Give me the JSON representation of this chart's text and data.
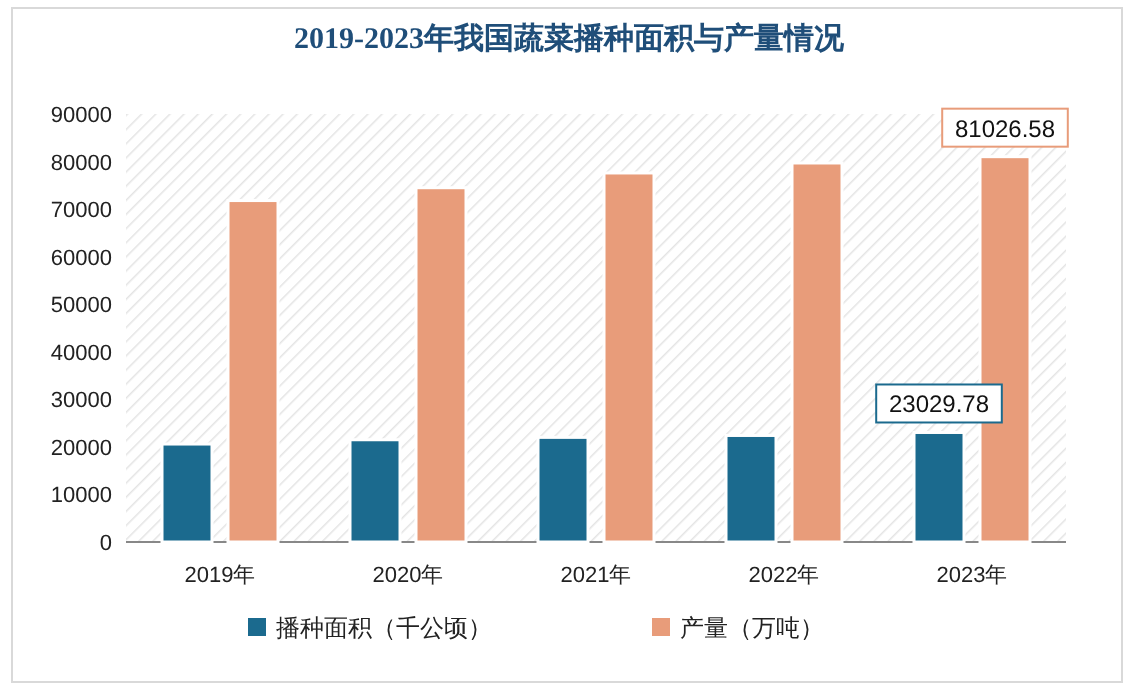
{
  "chart_data": {
    "type": "bar",
    "title": "2019-2023年我国蔬菜播种面积与产量情况",
    "categories": [
      "2019年",
      "2020年",
      "2021年",
      "2022年",
      "2023年"
    ],
    "series": [
      {
        "name": "播种面积（千公顷）",
        "color": "#1b6a8e",
        "values": [
          20600,
          21500,
          22000,
          22400,
          23029.78
        ],
        "value_labels": [
          null,
          null,
          null,
          null,
          "23029.78"
        ]
      },
      {
        "name": "产量（万吨）",
        "color": "#e89c7a",
        "values": [
          71800,
          74500,
          77600,
          79700,
          81026.58
        ],
        "value_labels": [
          null,
          null,
          null,
          null,
          "81026.58"
        ]
      }
    ],
    "ylim": [
      0,
      90000
    ],
    "yticks": [
      0,
      10000,
      20000,
      30000,
      40000,
      50000,
      60000,
      70000,
      80000,
      90000
    ],
    "legend": "bottom"
  }
}
